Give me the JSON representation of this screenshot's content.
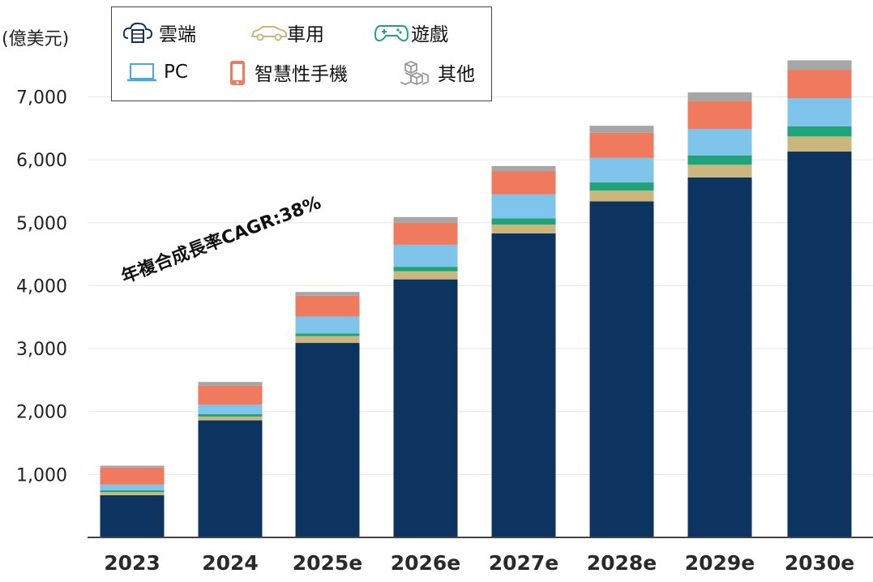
{
  "unit_label": "(億美元)",
  "annotation": "年複合成長率CAGR:38%",
  "legend": [
    {
      "key": "cloud",
      "label": "雲端",
      "icon": "cloud-server-icon"
    },
    {
      "key": "auto",
      "label": "車用",
      "icon": "car-icon"
    },
    {
      "key": "gaming",
      "label": "遊戲",
      "icon": "gamepad-icon"
    },
    {
      "key": "pc",
      "label": "PC",
      "icon": "laptop-icon"
    },
    {
      "key": "phone",
      "label": "智慧性手機",
      "icon": "smartphone-icon"
    },
    {
      "key": "other",
      "label": "其他",
      "icon": "cubes-icon"
    }
  ],
  "chart_data": {
    "type": "bar",
    "stacked": true,
    "categories": [
      "2023",
      "2024",
      "2025e",
      "2026e",
      "2027e",
      "2028e",
      "2029e",
      "2030e"
    ],
    "ylim": [
      0,
      7600
    ],
    "yticks": [
      1000,
      2000,
      3000,
      4000,
      5000,
      6000,
      7000
    ],
    "ytick_labels": [
      "1,000",
      "2,000",
      "3,000",
      "4,000",
      "5,000",
      "6,000",
      "7,000"
    ],
    "grid": true,
    "legend_position": "top-left",
    "series": [
      {
        "name": "雲端",
        "color": "#0d3461",
        "values": [
          670,
          1860,
          3090,
          4100,
          4830,
          5340,
          5720,
          6130
        ]
      },
      {
        "name": "車用",
        "color": "#cbb67e",
        "values": [
          50,
          60,
          110,
          130,
          140,
          170,
          200,
          240
        ]
      },
      {
        "name": "遊戲",
        "color": "#21a37a",
        "values": [
          30,
          40,
          40,
          70,
          100,
          130,
          150,
          160
        ]
      },
      {
        "name": "PC",
        "color": "#7fc4ea",
        "values": [
          90,
          150,
          270,
          350,
          380,
          390,
          420,
          450
        ]
      },
      {
        "name": "智慧性手機",
        "color": "#f07a5e",
        "values": [
          270,
          300,
          330,
          350,
          370,
          400,
          440,
          450
        ]
      },
      {
        "name": "其他",
        "color": "#a6a6a6",
        "values": [
          30,
          60,
          60,
          90,
          80,
          110,
          140,
          150
        ]
      }
    ]
  }
}
